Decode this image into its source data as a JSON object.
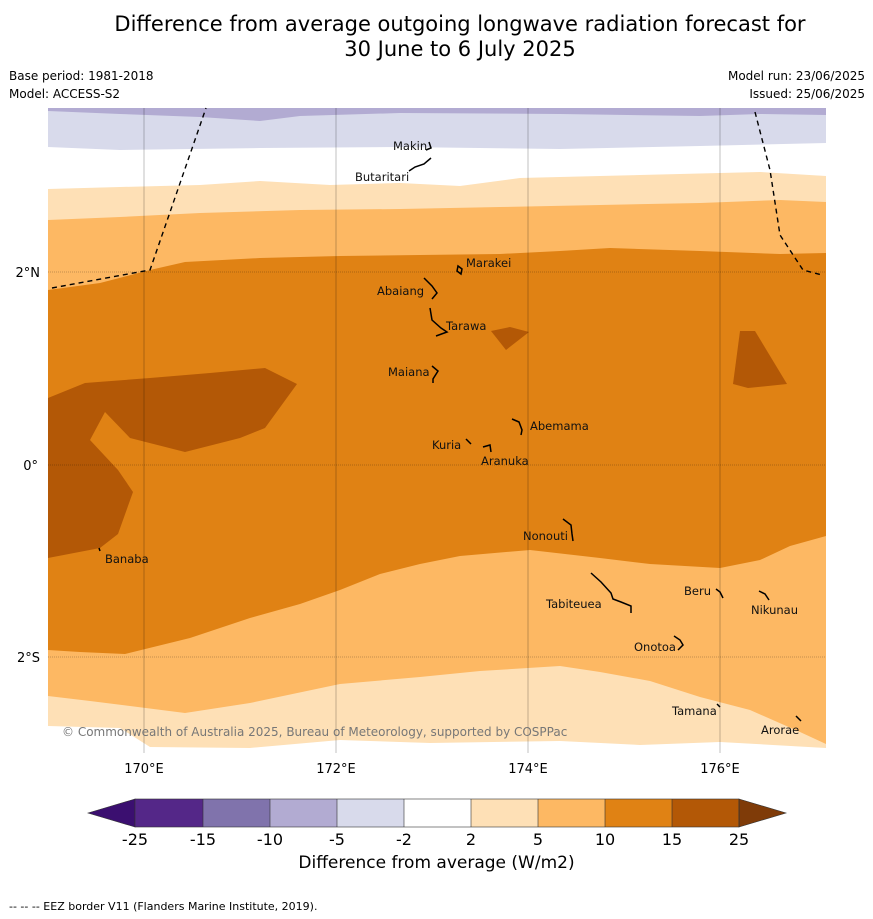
{
  "title_line1": "Difference from average outgoing longwave radiation forecast for",
  "title_line2": "30 June to 6 July 2025",
  "base_period": "Base period: 1981-2018",
  "model": "Model: ACCESS-S2",
  "model_run": "Model run: 23/06/2025",
  "issued": "Issued: 25/06/2025",
  "copyright": "© Commonwealth of Australia 2025, Bureau of Meteorology, supported by COSPPac",
  "lat_labels": [
    "2°N",
    "0°",
    "2°S"
  ],
  "lon_labels": [
    "170°E",
    "172°E",
    "174°E",
    "176°E"
  ],
  "places": [
    "Makin",
    "Butaritari",
    "Marakei",
    "Abaiang",
    "Tarawa",
    "Maiana",
    "Abemama",
    "Kuria",
    "Aranuka",
    "Banaba",
    "Nonouti",
    "Tabiteuea",
    "Beru",
    "Nikunau",
    "Onotoa",
    "Tamana",
    "Arorae"
  ],
  "colorbar": {
    "ticks": [
      "-25",
      "-15",
      "-10",
      "-5",
      "-2",
      "2",
      "5",
      "10",
      "15",
      "25"
    ],
    "colors": [
      "#3b0f70",
      "#542788",
      "#8073ac",
      "#b2abd2",
      "#d8daeb",
      "#ffffff",
      "#fee0b6",
      "#fdb863",
      "#e08214",
      "#b35806",
      "#7f3b08"
    ],
    "label": "Difference from average (W/m2)"
  },
  "footer": "--  --  -- EEZ border V11 (Flanders Marine Institute, 2019)."
}
